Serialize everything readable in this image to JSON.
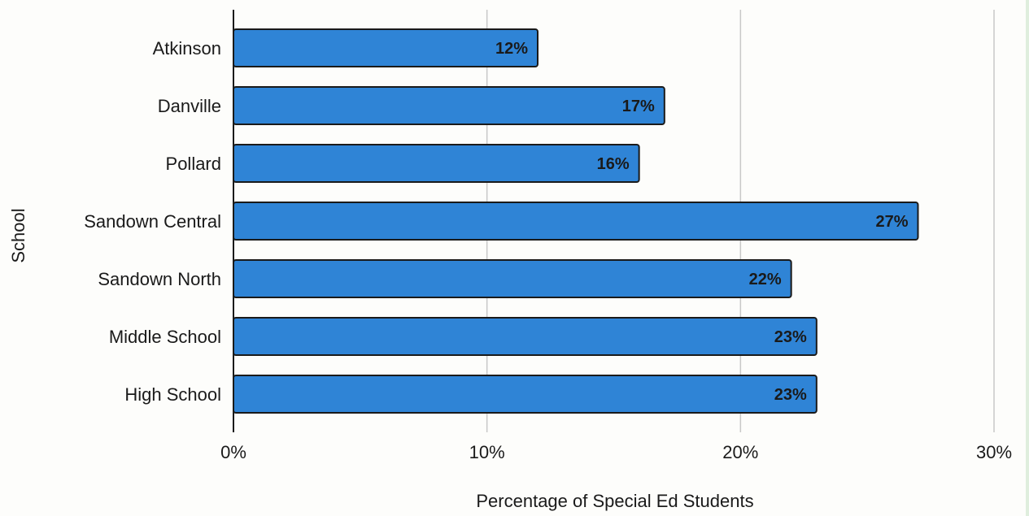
{
  "chart_data": {
    "type": "bar",
    "orientation": "horizontal",
    "categories": [
      "Atkinson",
      "Danville",
      "Pollard",
      "Sandown Central",
      "Sandown North",
      "Middle School",
      "High School"
    ],
    "values": [
      12,
      17,
      16,
      27,
      22,
      23,
      23
    ],
    "data_labels": [
      "12%",
      "17%",
      "16%",
      "27%",
      "22%",
      "23%",
      "23%"
    ],
    "title": "",
    "xlabel": "Percentage of Special Ed Students",
    "ylabel": "School",
    "xlim": [
      0,
      30
    ],
    "x_ticks": [
      0,
      10,
      20,
      30
    ],
    "x_tick_labels": [
      "0%",
      "10%",
      "20%",
      "30%"
    ],
    "grid": "vertical",
    "legend": "none",
    "bar_color": "#2f84d6",
    "bar_edge_color": "#1a1a1a",
    "grid_color": "#c8c8c8"
  }
}
